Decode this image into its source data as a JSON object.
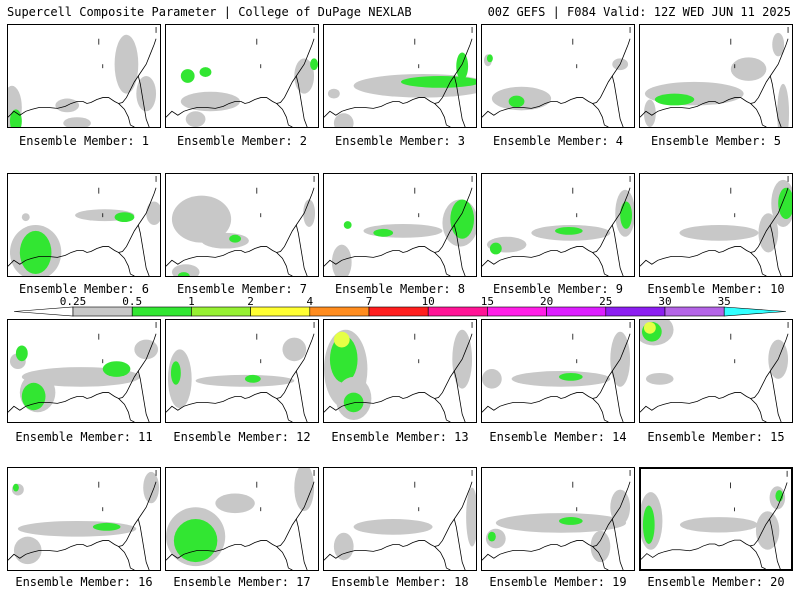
{
  "header": {
    "left": "Supercell Composite Parameter | College of DuPage NEXLAB",
    "right": "00Z GEFS | F084 Valid: 12Z WED JUN 11 2025"
  },
  "caption_prefix": "Ensemble Member: ",
  "selected_member": 20,
  "members": [
    {
      "label": "Ensemble Member: 1",
      "blobs": [
        [
          "g",
          4,
          84,
          10,
          22
        ],
        [
          "n",
          8,
          98,
          6,
          12
        ],
        [
          "g",
          120,
          40,
          12,
          30
        ],
        [
          "g",
          140,
          70,
          10,
          18
        ],
        [
          "g",
          60,
          82,
          12,
          7
        ],
        [
          "g",
          70,
          100,
          14,
          6
        ]
      ]
    },
    {
      "label": "Ensemble Member: 2",
      "blobs": [
        [
          "g",
          45,
          78,
          30,
          10
        ],
        [
          "n",
          22,
          52,
          7,
          7
        ],
        [
          "n",
          40,
          48,
          6,
          5
        ],
        [
          "g",
          140,
          52,
          10,
          18
        ],
        [
          "n",
          150,
          40,
          4,
          6
        ],
        [
          "g",
          40,
          114,
          20,
          4
        ],
        [
          "g",
          30,
          96,
          10,
          8
        ]
      ]
    },
    {
      "label": "Ensemble Member: 3",
      "blobs": [
        [
          "g",
          100,
          62,
          70,
          12
        ],
        [
          "n",
          118,
          58,
          40,
          6
        ],
        [
          "n",
          140,
          42,
          6,
          14
        ],
        [
          "g",
          20,
          100,
          10,
          10
        ],
        [
          "g",
          10,
          70,
          6,
          5
        ]
      ]
    },
    {
      "label": "Ensemble Member: 4",
      "blobs": [
        [
          "g",
          40,
          75,
          30,
          12
        ],
        [
          "n",
          35,
          78,
          8,
          6
        ],
        [
          "g",
          70,
          112,
          16,
          4
        ],
        [
          "g",
          6,
          36,
          4,
          6
        ],
        [
          "n",
          8,
          34,
          3,
          4
        ],
        [
          "g",
          140,
          40,
          8,
          6
        ]
      ]
    },
    {
      "label": "Ensemble Member: 5",
      "blobs": [
        [
          "g",
          55,
          70,
          50,
          12
        ],
        [
          "n",
          35,
          76,
          20,
          6
        ],
        [
          "g",
          10,
          90,
          6,
          14
        ],
        [
          "g",
          110,
          45,
          18,
          12
        ],
        [
          "g",
          140,
          20,
          6,
          12
        ],
        [
          "g",
          145,
          90,
          6,
          30
        ]
      ]
    },
    {
      "label": "Ensemble Member: 6",
      "blobs": [
        [
          "g",
          28,
          80,
          26,
          28
        ],
        [
          "n",
          28,
          80,
          16,
          22
        ],
        [
          "g",
          98,
          42,
          30,
          6
        ],
        [
          "n",
          118,
          44,
          10,
          5
        ],
        [
          "g",
          148,
          40,
          8,
          12
        ],
        [
          "g",
          18,
          44,
          4,
          4
        ]
      ]
    },
    {
      "label": "Ensemble Member: 7",
      "blobs": [
        [
          "g",
          36,
          46,
          30,
          24
        ],
        [
          "g",
          60,
          68,
          24,
          8
        ],
        [
          "n",
          70,
          66,
          6,
          4
        ],
        [
          "g",
          20,
          100,
          14,
          8
        ],
        [
          "n",
          18,
          104,
          6,
          4
        ],
        [
          "g",
          145,
          40,
          6,
          14
        ]
      ]
    },
    {
      "label": "Ensemble Member: 8",
      "blobs": [
        [
          "g",
          138,
          50,
          18,
          24
        ],
        [
          "n",
          140,
          46,
          12,
          20
        ],
        [
          "g",
          80,
          58,
          40,
          7
        ],
        [
          "n",
          60,
          60,
          10,
          4
        ],
        [
          "g",
          18,
          90,
          10,
          18
        ],
        [
          "n",
          24,
          52,
          4,
          4
        ]
      ]
    },
    {
      "label": "Ensemble Member: 9",
      "blobs": [
        [
          "g",
          90,
          60,
          40,
          8
        ],
        [
          "n",
          88,
          58,
          14,
          4
        ],
        [
          "g",
          145,
          40,
          10,
          24
        ],
        [
          "n",
          146,
          42,
          6,
          14
        ],
        [
          "g",
          25,
          72,
          20,
          8
        ],
        [
          "n",
          14,
          76,
          6,
          6
        ]
      ]
    },
    {
      "label": "Ensemble Member: 10",
      "blobs": [
        [
          "g",
          80,
          60,
          40,
          8
        ],
        [
          "g",
          145,
          30,
          12,
          24
        ],
        [
          "n",
          148,
          30,
          8,
          16
        ],
        [
          "g",
          130,
          60,
          10,
          20
        ]
      ]
    },
    {
      "label": "Ensemble Member: 11",
      "blobs": [
        [
          "g",
          74,
          58,
          60,
          10
        ],
        [
          "n",
          110,
          50,
          14,
          8
        ],
        [
          "g",
          30,
          74,
          18,
          20
        ],
        [
          "n",
          26,
          78,
          12,
          14
        ],
        [
          "g",
          10,
          42,
          8,
          8
        ],
        [
          "n",
          14,
          34,
          6,
          8
        ],
        [
          "g",
          140,
          30,
          12,
          10
        ]
      ]
    },
    {
      "label": "Ensemble Member: 12",
      "blobs": [
        [
          "g",
          14,
          60,
          12,
          30
        ],
        [
          "n",
          10,
          54,
          5,
          12
        ],
        [
          "g",
          80,
          62,
          50,
          6
        ],
        [
          "n",
          88,
          60,
          8,
          4
        ],
        [
          "g",
          130,
          30,
          12,
          12
        ]
      ]
    },
    {
      "label": "Ensemble Member: 13",
      "blobs": [
        [
          "g",
          22,
          50,
          22,
          40
        ],
        [
          "n",
          20,
          40,
          14,
          24
        ],
        [
          "y",
          18,
          20,
          8,
          8
        ],
        [
          "g",
          30,
          80,
          18,
          22
        ],
        [
          "n",
          30,
          84,
          10,
          10
        ],
        [
          "g",
          140,
          40,
          10,
          30
        ]
      ]
    },
    {
      "label": "Ensemble Member: 14",
      "blobs": [
        [
          "g",
          80,
          60,
          50,
          8
        ],
        [
          "n",
          90,
          58,
          12,
          4
        ],
        [
          "g",
          140,
          40,
          10,
          28
        ],
        [
          "g",
          10,
          60,
          10,
          10
        ]
      ]
    },
    {
      "label": "Ensemble Member: 15",
      "blobs": [
        [
          "g",
          14,
          10,
          20,
          16
        ],
        [
          "n",
          12,
          12,
          10,
          10
        ],
        [
          "y",
          10,
          8,
          6,
          6
        ],
        [
          "g",
          20,
          60,
          14,
          6
        ],
        [
          "g",
          140,
          40,
          10,
          20
        ]
      ]
    },
    {
      "label": "Ensemble Member: 16",
      "blobs": [
        [
          "g",
          70,
          62,
          60,
          8
        ],
        [
          "n",
          100,
          60,
          14,
          4
        ],
        [
          "g",
          10,
          22,
          6,
          6
        ],
        [
          "n",
          8,
          20,
          3,
          4
        ],
        [
          "g",
          20,
          84,
          14,
          14
        ],
        [
          "g",
          145,
          20,
          8,
          16
        ]
      ]
    },
    {
      "label": "Ensemble Member: 17",
      "blobs": [
        [
          "g",
          30,
          70,
          30,
          30
        ],
        [
          "n",
          30,
          74,
          22,
          22
        ],
        [
          "g",
          70,
          36,
          20,
          10
        ],
        [
          "g",
          140,
          20,
          10,
          24
        ]
      ]
    },
    {
      "label": "Ensemble Member: 18",
      "blobs": [
        [
          "g",
          70,
          60,
          40,
          8
        ],
        [
          "g",
          20,
          80,
          10,
          14
        ],
        [
          "g",
          150,
          50,
          6,
          30
        ]
      ]
    },
    {
      "label": "Ensemble Member: 19",
      "blobs": [
        [
          "g",
          80,
          56,
          66,
          10
        ],
        [
          "n",
          90,
          54,
          12,
          4
        ],
        [
          "g",
          14,
          72,
          10,
          10
        ],
        [
          "n",
          10,
          70,
          4,
          5
        ],
        [
          "g",
          140,
          40,
          10,
          18
        ],
        [
          "g",
          120,
          80,
          10,
          16
        ]
      ]
    },
    {
      "label": "Ensemble Member: 20",
      "blobs": [
        [
          "g",
          10,
          54,
          12,
          30
        ],
        [
          "n",
          8,
          58,
          6,
          20
        ],
        [
          "g",
          80,
          58,
          40,
          8
        ],
        [
          "g",
          140,
          30,
          8,
          12
        ],
        [
          "n",
          142,
          28,
          4,
          6
        ],
        [
          "g",
          130,
          64,
          12,
          20
        ]
      ]
    }
  ],
  "colorbar": {
    "ticks": [
      "0.25",
      "0.5",
      "1",
      "2",
      "4",
      "7",
      "10",
      "15",
      "20",
      "25",
      "30",
      "35"
    ],
    "colors": [
      "#ffffff",
      "#c8c8c8",
      "#32e632",
      "#96f032",
      "#ffff32",
      "#ff8c1e",
      "#ff1e1e",
      "#ff1496",
      "#ff1ee6",
      "#dc1eff",
      "#8c1ef0",
      "#b464e6",
      "#32ffff"
    ]
  },
  "legend_colors": {
    "gray": "#c8c8c8",
    "green": "#32e632",
    "yellow": "#e6ff46"
  }
}
